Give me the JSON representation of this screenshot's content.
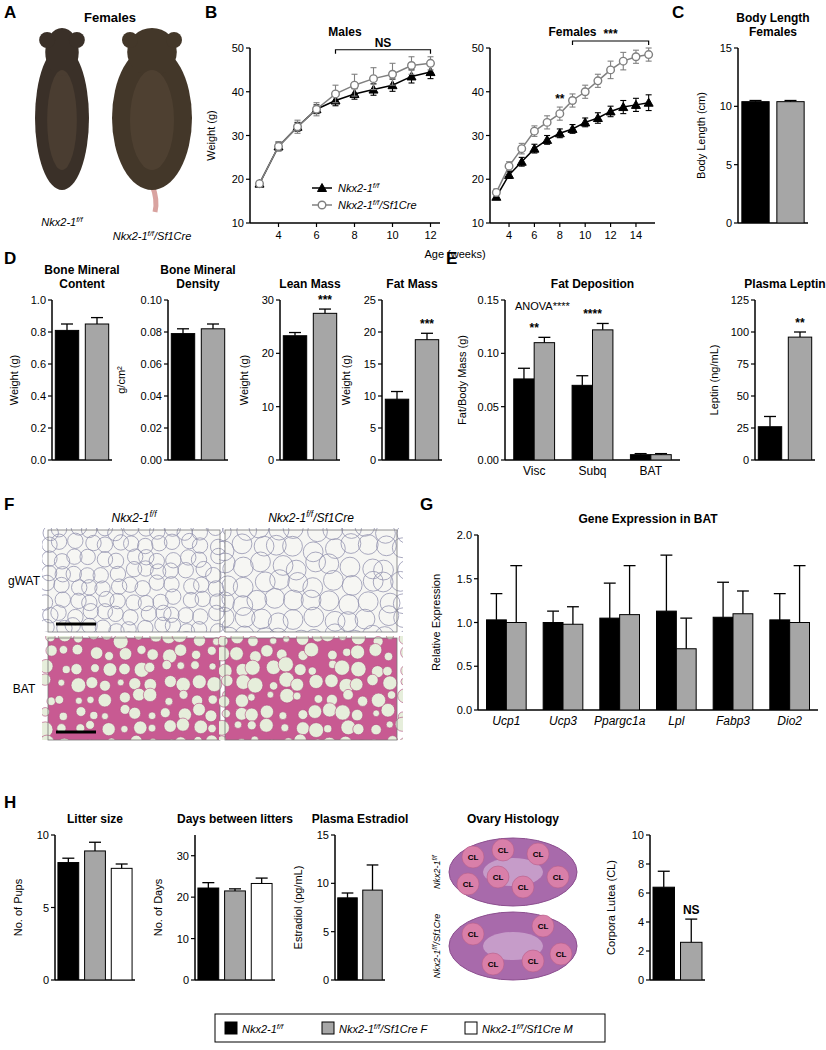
{
  "panel_letters": [
    "A",
    "B",
    "C",
    "D",
    "E",
    "F",
    "G",
    "H"
  ],
  "photo": {
    "title": "Females",
    "labels": [
      [
        "Nkx2-1",
        "f/f"
      ],
      [
        "Nkx2-1",
        "f/f",
        "/Sf1Cre"
      ]
    ]
  },
  "histology": {
    "columns": [
      [
        "Nkx2-1",
        "f/f"
      ],
      [
        "Nkx2-1",
        "f/f",
        "/Sf1Cre"
      ]
    ],
    "rows": [
      "gWAT",
      "BAT"
    ]
  },
  "ovary": {
    "title": "Ovary Histology",
    "labels": [
      [
        "Nkx2-1",
        "f/f"
      ],
      [
        "Nkx2-1",
        "f/f",
        "/Sf1Cre"
      ]
    ],
    "mark": "CL"
  },
  "legend_entries": [
    {
      "label": [
        "Nkx2-1",
        "f/f"
      ],
      "color": "#000000"
    },
    {
      "label": [
        "Nkx2-1",
        "f/f",
        "/Sf1Cre F"
      ],
      "color": "#a6a6a6"
    },
    {
      "label": [
        "Nkx2-1",
        "f/f",
        "/Sf1Cre M"
      ],
      "color": "#ffffff"
    }
  ],
  "chart_data": [
    {
      "type": "line",
      "title": "Males",
      "xlabel": "Age (weeks)",
      "ylabel": "Weight (g)",
      "xlim": [
        2.5,
        12.5
      ],
      "xticks": [
        4,
        6,
        8,
        10,
        12
      ],
      "ylim": [
        10,
        50
      ],
      "yticks": [
        10,
        20,
        30,
        40,
        50
      ],
      "legend": "lower right",
      "series": [
        {
          "name": [
            "Nkx2-1",
            "f/f"
          ],
          "color": "#000000",
          "marker": "triangle",
          "line_style": "solid",
          "x": [
            3,
            4,
            5,
            6,
            7,
            8,
            9,
            10,
            11,
            12
          ],
          "values": [
            19,
            27.5,
            32,
            36,
            38,
            39.5,
            40.5,
            41.5,
            43.5,
            44.5
          ],
          "errors": [
            0.5,
            1,
            1,
            1,
            1.2,
            1.2,
            1.3,
            1.4,
            1.5,
            1.5
          ]
        },
        {
          "name": [
            "Nkx2-1",
            "f/f",
            "/Sf1Cre"
          ],
          "color": "#808080",
          "marker": "open-circle",
          "line_style": "solid",
          "x": [
            3,
            4,
            5,
            6,
            7,
            8,
            9,
            10,
            11,
            12
          ],
          "values": [
            19,
            27.5,
            32,
            36,
            39.5,
            41.5,
            43,
            44,
            46,
            46.5
          ],
          "errors": [
            0.5,
            1,
            1.5,
            1.5,
            2,
            2.5,
            2.5,
            2.5,
            2,
            1.5
          ]
        }
      ],
      "annotations": [
        {
          "text": "NS",
          "from": 7,
          "to": 12
        }
      ]
    },
    {
      "type": "line",
      "title": "Females",
      "xlim": [
        2.5,
        15.5
      ],
      "xticks": [
        4,
        6,
        8,
        10,
        12,
        14
      ],
      "ylim": [
        10,
        50
      ],
      "yticks": [
        10,
        20,
        30,
        40,
        50
      ],
      "series": [
        {
          "color": "#000000",
          "marker": "triangle",
          "line_style": "solid",
          "x": [
            3,
            4,
            5,
            6,
            7,
            8,
            9,
            10,
            11,
            12,
            13,
            14,
            15
          ],
          "values": [
            16,
            21,
            24,
            27,
            29,
            30.5,
            31.5,
            33,
            34,
            35.5,
            36.5,
            37,
            37.5
          ],
          "errors": [
            0.5,
            0.8,
            1,
            1,
            1,
            1,
            1,
            1,
            1.2,
            1.2,
            1.5,
            1.5,
            1.8
          ]
        },
        {
          "color": "#808080",
          "marker": "open-circle",
          "line_style": "solid",
          "x": [
            3,
            4,
            5,
            6,
            7,
            8,
            9,
            10,
            11,
            12,
            13,
            14,
            15
          ],
          "values": [
            17,
            23,
            27,
            31,
            33,
            35,
            38,
            40,
            42.5,
            45,
            47,
            48,
            48.5
          ],
          "errors": [
            0.8,
            1,
            1.2,
            1.2,
            1.5,
            1.5,
            1.5,
            1.5,
            1.5,
            2,
            2,
            1.5,
            1.5
          ]
        }
      ],
      "annotations": [
        {
          "text": "**",
          "at": 8
        },
        {
          "text": "***",
          "from": 9,
          "to": 15
        }
      ]
    },
    {
      "type": "bar",
      "title": [
        "Body Length",
        "Females"
      ],
      "ylabel": "Body Length (cm)",
      "ylim": [
        0,
        15
      ],
      "yticks": [
        0,
        5,
        10,
        15
      ],
      "values": [
        10.4,
        10.4
      ],
      "errors": [
        0.1,
        0.1
      ],
      "colors": [
        "#000000",
        "#a6a6a6"
      ]
    },
    {
      "type": "bar",
      "title": [
        "Bone Mineral",
        "Content"
      ],
      "ylabel": "Weight (g)",
      "ylim": [
        0,
        1
      ],
      "yticks": [
        {
          "value": 0,
          "label": "0.0"
        },
        0.2,
        0.4,
        0.6,
        0.8,
        {
          "value": 1,
          "label": "1.0"
        }
      ],
      "values": [
        0.81,
        0.85
      ],
      "errors": [
        0.04,
        0.04
      ],
      "colors": [
        "#000000",
        "#a6a6a6"
      ]
    },
    {
      "type": "bar",
      "title": [
        "Bone Mineral",
        "Density"
      ],
      "ylabel": "g/cm²",
      "ylim": [
        0,
        0.1
      ],
      "yticks": [
        {
          "value": 0,
          "label": "0.00"
        },
        0.02,
        0.04,
        0.06,
        0.08,
        {
          "value": 0.1,
          "label": "0.10"
        }
      ],
      "values": [
        0.079,
        0.082
      ],
      "errors": [
        0.003,
        0.003
      ],
      "colors": [
        "#000000",
        "#a6a6a6"
      ]
    },
    {
      "type": "bar",
      "title": "Lean Mass",
      "ylabel": "Weight (g)",
      "ylim": [
        0,
        30
      ],
      "yticks": [
        0,
        10,
        20,
        30
      ],
      "values": [
        23.3,
        27.5
      ],
      "errors": [
        0.6,
        0.8
      ],
      "colors": [
        "#000000",
        "#a6a6a6"
      ],
      "significance": [
        null,
        "***"
      ]
    },
    {
      "type": "bar",
      "title": "Fat Mass",
      "ylabel": "Weight (g)",
      "ylim": [
        0,
        25
      ],
      "yticks": [
        0,
        5,
        10,
        15,
        20,
        25
      ],
      "values": [
        9.5,
        18.8
      ],
      "errors": [
        1.2,
        1
      ],
      "colors": [
        "#000000",
        "#a6a6a6"
      ],
      "significance": [
        null,
        "***"
      ]
    },
    {
      "type": "bar",
      "title": "Fat Deposition",
      "ylabel": "Fat/Body Mass (g)",
      "annotation": "ANOVA****",
      "categories": [
        "Visc",
        "Subq",
        "BAT"
      ],
      "ylim": [
        0,
        0.15
      ],
      "yticks": [
        {
          "value": 0,
          "label": "0.00"
        },
        0.05,
        {
          "value": 0.1,
          "label": "0.10"
        },
        0.15
      ],
      "series": [
        {
          "color": "#000000",
          "values": [
            0.076,
            0.07,
            0.005
          ],
          "errors": [
            0.01,
            0.009,
            0.001
          ]
        },
        {
          "color": "#a6a6a6",
          "values": [
            0.11,
            0.122,
            0.005
          ],
          "errors": [
            0.005,
            0.006,
            0.001
          ]
        }
      ],
      "significance": [
        "**",
        "****",
        null
      ]
    },
    {
      "type": "bar",
      "title": "Plasma Leptin",
      "ylabel": "Leptin (ng/mL)",
      "ylim": [
        0,
        125
      ],
      "yticks": [
        0,
        25,
        50,
        75,
        100,
        125
      ],
      "values": [
        26,
        96
      ],
      "errors": [
        8,
        4
      ],
      "colors": [
        "#000000",
        "#a6a6a6"
      ],
      "significance": [
        null,
        "**"
      ]
    },
    {
      "type": "bar",
      "title": "Gene Expression in BAT",
      "ylabel": "Relative Expression",
      "categories": [
        "Ucp1",
        "Ucp3",
        "Ppargc1a",
        "Lpl",
        "Fabp3",
        "Dio2"
      ],
      "ylim": [
        0,
        2
      ],
      "yticks": [
        {
          "value": 0,
          "label": "0.0"
        },
        0.5,
        {
          "value": 1,
          "label": "1.0"
        },
        1.5,
        {
          "value": 2,
          "label": "2.0"
        }
      ],
      "series": [
        {
          "color": "#000000",
          "values": [
            1.03,
            1,
            1.05,
            1.13,
            1.06,
            1.03
          ],
          "errors": [
            0.3,
            0.13,
            0.4,
            0.64,
            0.4,
            0.3
          ]
        },
        {
          "color": "#a6a6a6",
          "values": [
            1,
            0.98,
            1.09,
            0.7,
            1.1,
            1
          ],
          "errors": [
            0.65,
            0.2,
            0.56,
            0.35,
            0.26,
            0.65
          ]
        }
      ]
    },
    {
      "type": "bar",
      "title": "Litter size",
      "ylabel": "No. of Pups",
      "ylim": [
        0,
        10
      ],
      "yticks": [
        0,
        5,
        10
      ],
      "values": [
        8.1,
        8.9,
        7.7
      ],
      "errors": [
        0.3,
        0.6,
        0.3
      ],
      "colors": [
        "#000000",
        "#a6a6a6",
        "#ffffff"
      ]
    },
    {
      "type": "bar",
      "title": "Days between litters",
      "ylabel": "No. of Days",
      "ylim": [
        0,
        35
      ],
      "yticks": [
        0,
        10,
        20,
        30
      ],
      "values": [
        22.2,
        21.5,
        23.3
      ],
      "errors": [
        1.3,
        0.5,
        1.3
      ],
      "colors": [
        "#000000",
        "#a6a6a6",
        "#ffffff"
      ]
    },
    {
      "type": "bar",
      "title": "Plasma Estradiol",
      "ylabel": "Estradiol (pg/mL)",
      "ylim": [
        0,
        15
      ],
      "yticks": [
        0,
        5,
        10,
        15
      ],
      "values": [
        8.5,
        9.3
      ],
      "errors": [
        0.5,
        2.6
      ],
      "colors": [
        "#000000",
        "#a6a6a6"
      ]
    },
    {
      "type": "bar",
      "ylabel": "Corpora Lutea (CL)",
      "ylim": [
        0,
        10
      ],
      "yticks": [
        0,
        2,
        4,
        6,
        8,
        10
      ],
      "values": [
        6.4,
        2.6
      ],
      "errors": [
        1.1,
        1.6
      ],
      "colors": [
        "#000000",
        "#a6a6a6"
      ],
      "significance": [
        null,
        "NS"
      ]
    }
  ]
}
